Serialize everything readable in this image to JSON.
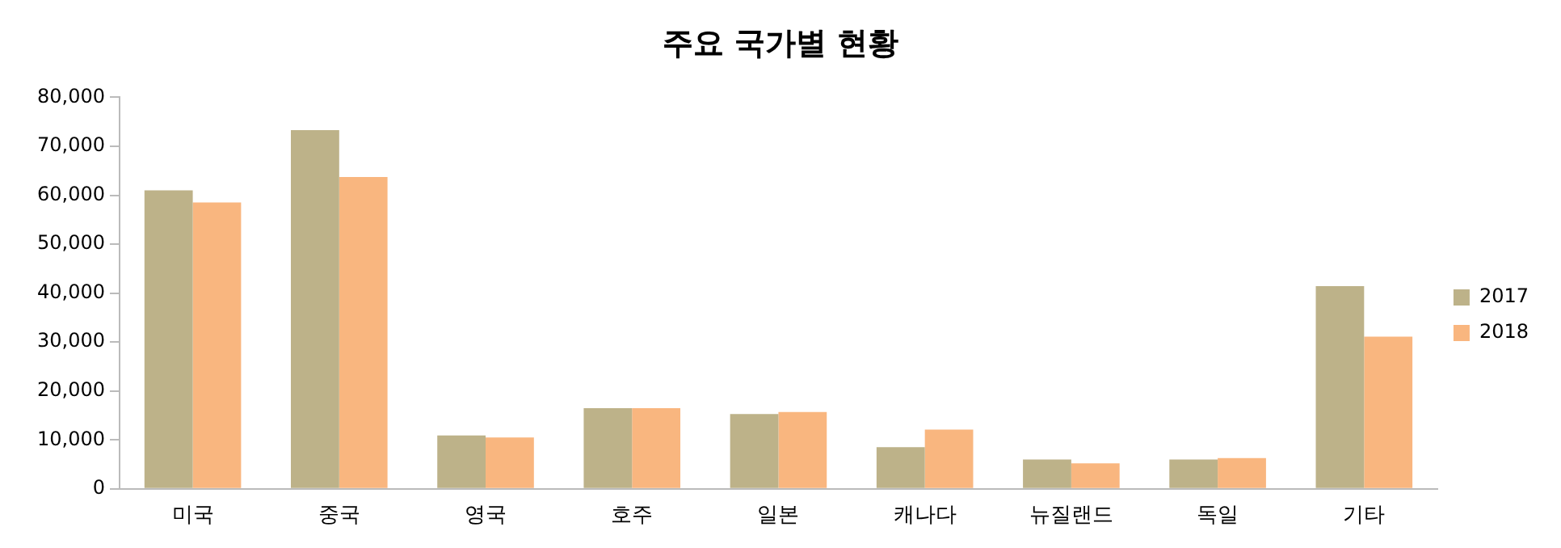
{
  "chart_data": {
    "type": "bar",
    "title": "주요 국가별 현황",
    "categories": [
      "미국",
      "중국",
      "영국",
      "호주",
      "일본",
      "캐나다",
      "뉴질랜드",
      "독일",
      "기타"
    ],
    "series": [
      {
        "name": "2017",
        "color": "#bdb289",
        "values": [
          61000,
          73300,
          10900,
          16500,
          15300,
          8500,
          6000,
          6000,
          41400
        ]
      },
      {
        "name": "2018",
        "color": "#f9b67f",
        "values": [
          58500,
          63700,
          10500,
          16500,
          15700,
          12100,
          5200,
          6300,
          31100
        ]
      }
    ],
    "ylim": [
      0,
      80000
    ],
    "yticks": [
      {
        "value": 0,
        "label": "0"
      },
      {
        "value": 10000,
        "label": "10,000"
      },
      {
        "value": 20000,
        "label": "20,000"
      },
      {
        "value": 30000,
        "label": "30,000"
      },
      {
        "value": 40000,
        "label": "40,000"
      },
      {
        "value": 50000,
        "label": "50,000"
      },
      {
        "value": 60000,
        "label": "60,000"
      },
      {
        "value": 70000,
        "label": "70,000"
      },
      {
        "value": 80000,
        "label": "80,000"
      }
    ],
    "grid": false,
    "legend": "right"
  }
}
